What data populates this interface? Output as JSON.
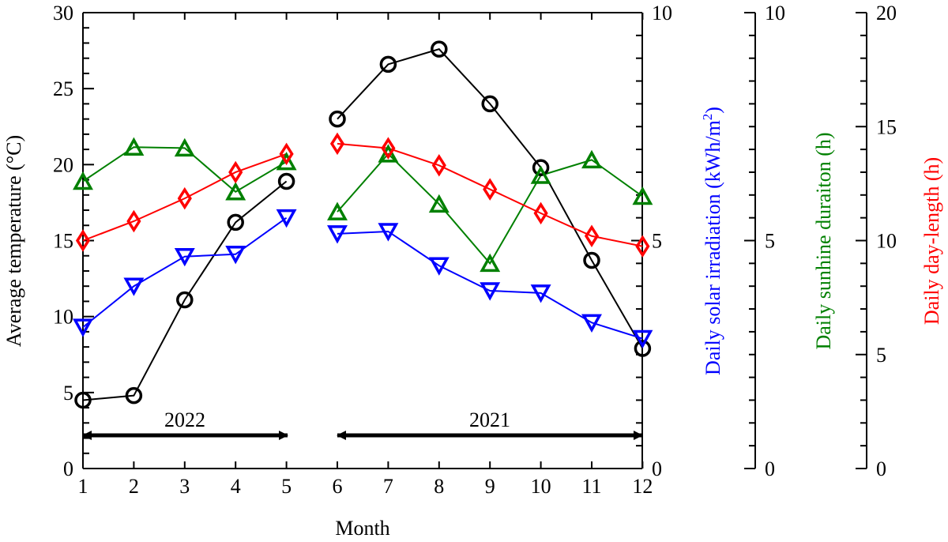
{
  "chart_data": {
    "type": "line",
    "xlabel": "Month",
    "x_ticks": [
      "1",
      "2",
      "3",
      "4",
      "5",
      "6",
      "7",
      "8",
      "9",
      "10",
      "11",
      "12"
    ],
    "axes": {
      "temperature": {
        "label": "Average temperature (°C)",
        "range": [
          0,
          30
        ],
        "ticks": [
          "0",
          "5",
          "10",
          "15",
          "20",
          "25",
          "30"
        ],
        "color": "#000000"
      },
      "solar": {
        "label": "Daily solar irradiation (kWh/m²)",
        "label_main": "Daily solar irradiation (kWh/m",
        "label_sup": "2",
        "label_tail": ")",
        "range": [
          0,
          10
        ],
        "ticks": [
          "0",
          "5",
          "10"
        ],
        "color": "#0000ff"
      },
      "sunshine": {
        "label": "Daily sunhine duraiton (h)",
        "range": [
          0,
          10
        ],
        "ticks": [
          "0",
          "5",
          "10"
        ],
        "color": "#008000"
      },
      "daylength": {
        "label": "Daily day-length (h)",
        "range": [
          0,
          20
        ],
        "ticks": [
          "0",
          "5",
          "10",
          "15",
          "20"
        ],
        "color": "#ff0000"
      }
    },
    "series": [
      {
        "key": "temperature",
        "axis": "temperature",
        "marker": "circle",
        "color": "#000000",
        "segments": [
          {
            "x": [
              1,
              2,
              3,
              4,
              5
            ],
            "y": [
              4.5,
              4.8,
              11.1,
              16.2,
              18.9
            ]
          },
          {
            "x": [
              6,
              7,
              8,
              9,
              10,
              11,
              12
            ],
            "y": [
              23.0,
              26.6,
              27.6,
              24.0,
              19.8,
              13.7,
              7.9
            ]
          }
        ]
      },
      {
        "key": "solar",
        "axis": "solar",
        "marker": "triangle-down",
        "color": "#0000ff",
        "segments": [
          {
            "x": [
              1,
              2,
              3,
              4,
              5
            ],
            "y": [
              3.1,
              4.0,
              4.65,
              4.7,
              5.5
            ]
          },
          {
            "x": [
              6,
              7,
              8,
              9,
              10,
              11,
              12
            ],
            "y": [
              5.15,
              5.2,
              4.45,
              3.9,
              3.85,
              3.2,
              2.85
            ]
          }
        ]
      },
      {
        "key": "sunshine",
        "axis": "sunshine",
        "marker": "triangle-up",
        "color": "#008000",
        "segments": [
          {
            "x": [
              1,
              2,
              3,
              4,
              5
            ],
            "y": [
              6.3,
              7.05,
              7.03,
              6.07,
              6.73
            ]
          },
          {
            "x": [
              6,
              7,
              8,
              9,
              10,
              11,
              12
            ],
            "y": [
              5.63,
              6.9,
              5.8,
              4.5,
              6.43,
              6.77,
              5.97
            ]
          }
        ]
      },
      {
        "key": "daylength",
        "axis": "daylength",
        "marker": "diamond",
        "color": "#ff0000",
        "segments": [
          {
            "x": [
              1,
              2,
              3,
              4,
              5
            ],
            "y": [
              10.0,
              10.85,
              11.85,
              13.0,
              13.8
            ]
          },
          {
            "x": [
              6,
              7,
              8,
              9,
              10,
              11,
              12
            ],
            "y": [
              14.25,
              14.05,
              13.3,
              12.25,
              11.2,
              10.2,
              9.75
            ]
          }
        ]
      }
    ],
    "annotations": [
      {
        "text": "2022",
        "x_from": 1,
        "x_to": 5
      },
      {
        "text": "2021",
        "x_from": 6,
        "x_to": 12
      }
    ],
    "grid": false,
    "legend": "none"
  }
}
